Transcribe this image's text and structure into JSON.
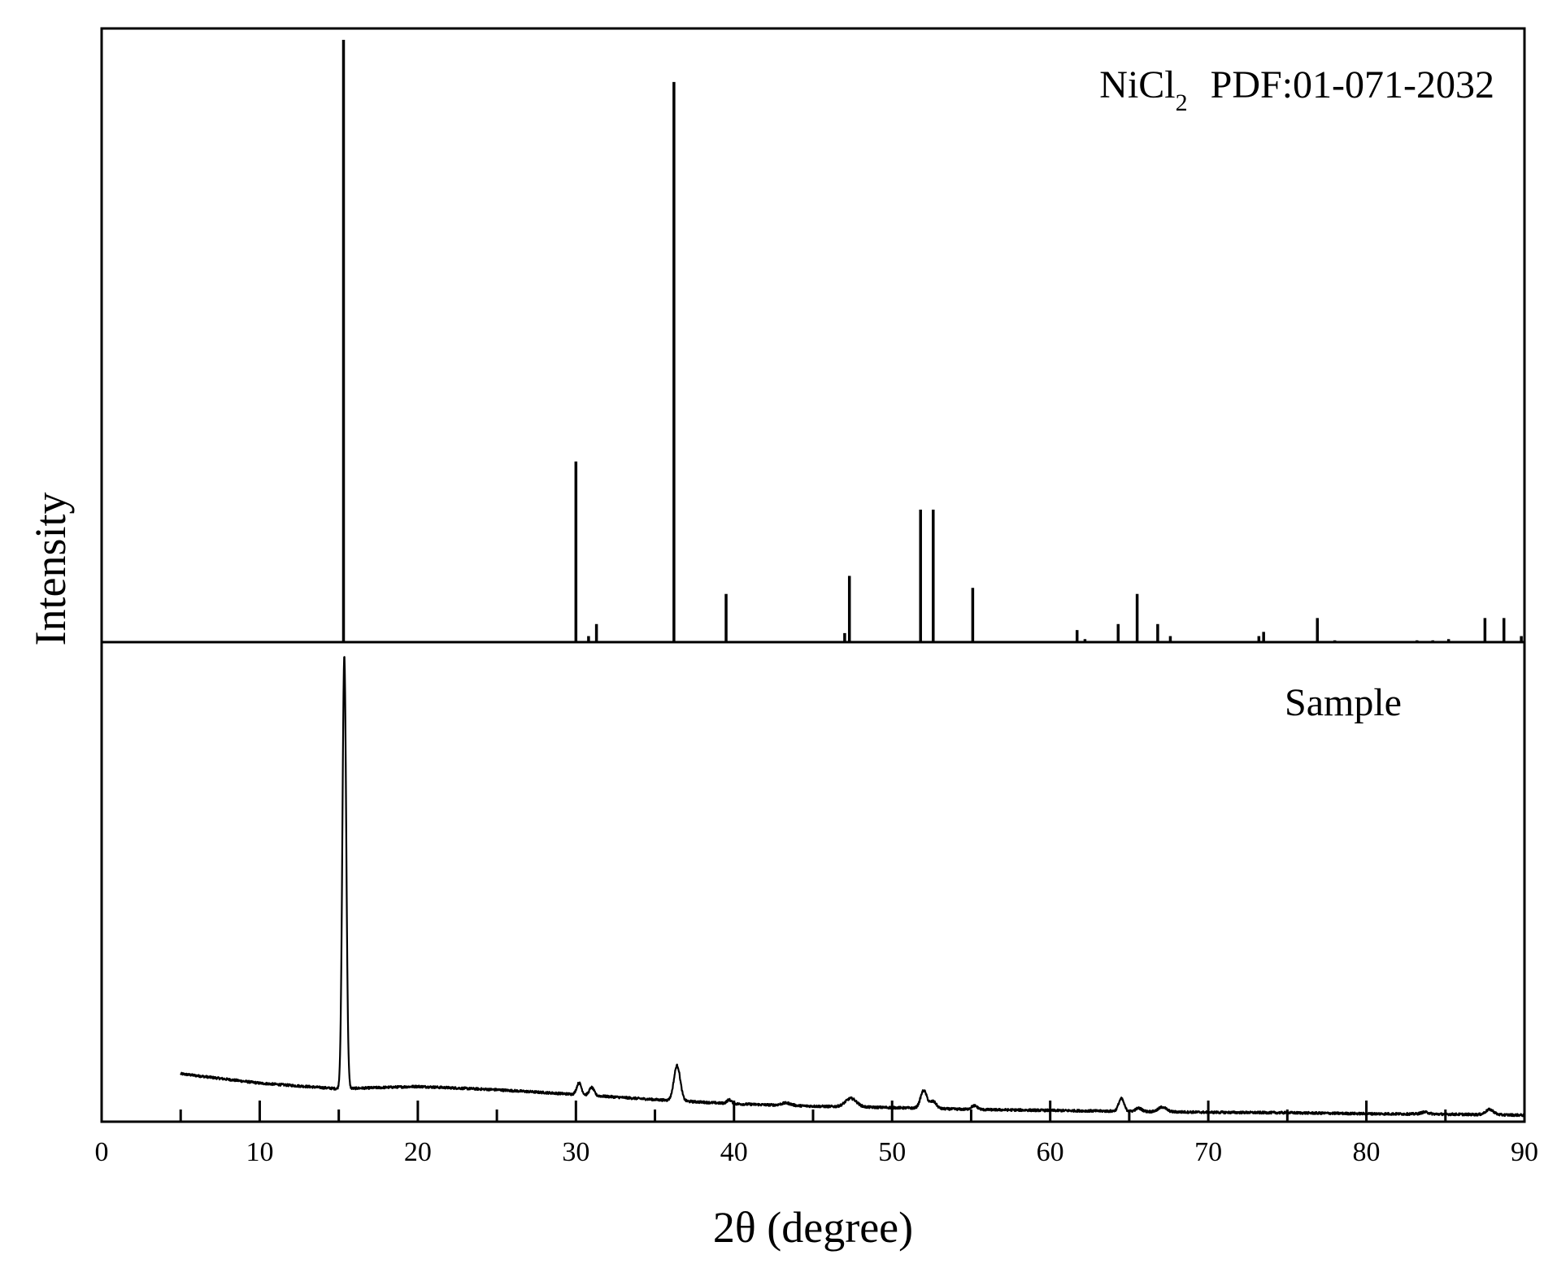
{
  "chart_data": {
    "type": "line",
    "layout": "two stacked panels, shared x axis",
    "xlabel": "2θ (degree)",
    "ylabel": "Intensity",
    "xlim": [
      0,
      90
    ],
    "x_ticks_major": [
      0,
      10,
      20,
      30,
      40,
      50,
      60,
      70,
      80,
      90
    ],
    "x_ticks_minor": [
      5,
      15,
      25,
      35,
      45,
      55,
      65,
      75,
      85
    ],
    "y_axis_values_shown": false,
    "grid": false,
    "legend": "none",
    "colors": {
      "line": "#000000",
      "background": "#ffffff"
    },
    "panels": [
      {
        "position": "top",
        "type": "stick",
        "label": {
          "compound_main": "NiCl",
          "compound_subscript": "2",
          "pdf_reference": "PDF:01-071-2032"
        },
        "ylim": [
          0,
          100
        ],
        "sticks": [
          {
            "x": 15.3,
            "y": 100
          },
          {
            "x": 30.0,
            "y": 30
          },
          {
            "x": 30.8,
            "y": 1
          },
          {
            "x": 31.3,
            "y": 3
          },
          {
            "x": 36.2,
            "y": 93
          },
          {
            "x": 39.5,
            "y": 8
          },
          {
            "x": 47.0,
            "y": 1.5
          },
          {
            "x": 47.3,
            "y": 11
          },
          {
            "x": 51.8,
            "y": 22
          },
          {
            "x": 52.6,
            "y": 22
          },
          {
            "x": 55.1,
            "y": 9
          },
          {
            "x": 61.7,
            "y": 2
          },
          {
            "x": 62.2,
            "y": 0.5
          },
          {
            "x": 64.3,
            "y": 3
          },
          {
            "x": 65.5,
            "y": 8
          },
          {
            "x": 66.8,
            "y": 3
          },
          {
            "x": 67.6,
            "y": 1
          },
          {
            "x": 73.2,
            "y": 1
          },
          {
            "x": 73.5,
            "y": 1.7
          },
          {
            "x": 76.9,
            "y": 4
          },
          {
            "x": 78.0,
            "y": 0.3
          },
          {
            "x": 83.2,
            "y": 0.3
          },
          {
            "x": 84.2,
            "y": 0.3
          },
          {
            "x": 85.2,
            "y": 0.5
          },
          {
            "x": 87.5,
            "y": 4
          },
          {
            "x": 88.7,
            "y": 4
          },
          {
            "x": 89.8,
            "y": 1
          }
        ]
      },
      {
        "position": "bottom",
        "type": "line",
        "label": {
          "text": "Sample"
        },
        "ylim": [
          0,
          100
        ],
        "x_range": [
          5,
          90
        ],
        "baseline": [
          [
            5,
            10.2
          ],
          [
            10,
            8.2
          ],
          [
            15,
            7.0
          ],
          [
            20,
            7.5
          ],
          [
            25,
            6.8
          ],
          [
            30,
            5.8
          ],
          [
            35,
            4.7
          ],
          [
            40,
            3.8
          ],
          [
            45,
            3.3
          ],
          [
            50,
            3.0
          ],
          [
            55,
            2.6
          ],
          [
            60,
            2.4
          ],
          [
            65,
            2.2
          ],
          [
            70,
            2.0
          ],
          [
            75,
            1.9
          ],
          [
            80,
            1.7
          ],
          [
            85,
            1.6
          ],
          [
            90,
            1.4
          ]
        ],
        "peaks": [
          {
            "center": 15.35,
            "height": 92,
            "width": 0.12
          },
          {
            "center": 30.2,
            "height": 2.5,
            "width": 0.15
          },
          {
            "center": 31.0,
            "height": 1.7,
            "width": 0.15
          },
          {
            "center": 36.4,
            "height": 7.5,
            "width": 0.2
          },
          {
            "center": 39.7,
            "height": 0.8,
            "width": 0.15
          },
          {
            "center": 43.3,
            "height": 0.5,
            "width": 0.3
          },
          {
            "center": 47.4,
            "height": 1.8,
            "width": 0.35
          },
          {
            "center": 52.0,
            "height": 3.8,
            "width": 0.2
          },
          {
            "center": 52.6,
            "height": 1.5,
            "width": 0.2
          },
          {
            "center": 55.2,
            "height": 0.8,
            "width": 0.2
          },
          {
            "center": 64.5,
            "height": 2.7,
            "width": 0.17
          },
          {
            "center": 65.6,
            "height": 0.7,
            "width": 0.2
          },
          {
            "center": 67.1,
            "height": 1.0,
            "width": 0.25
          },
          {
            "center": 83.7,
            "height": 0.4,
            "width": 0.25
          },
          {
            "center": 87.8,
            "height": 1.1,
            "width": 0.25
          }
        ],
        "noise_amplitude": 0.25
      }
    ]
  }
}
